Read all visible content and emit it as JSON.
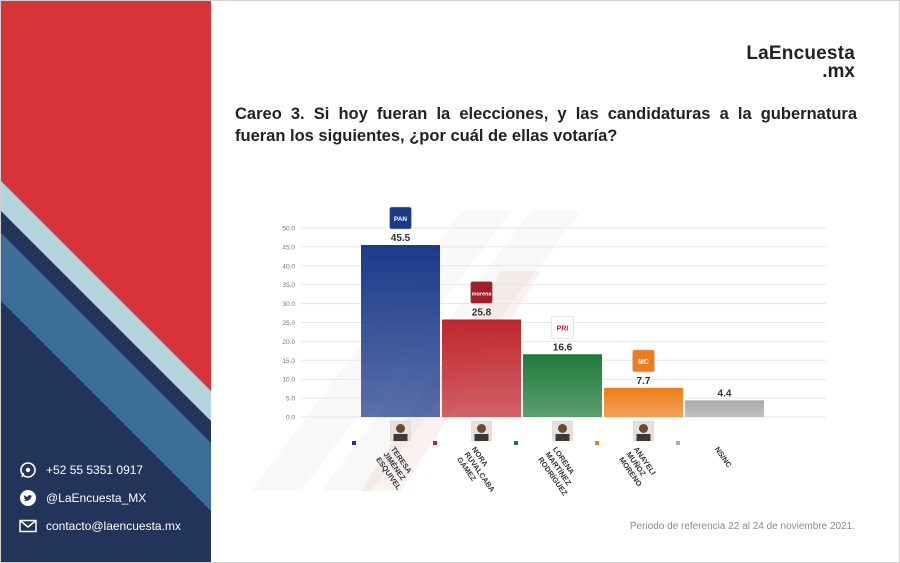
{
  "brand": {
    "line1": "LaEncuesta",
    "line2": ".mx"
  },
  "title": "Careo 3. Si hoy fueran la elecciones, y las candidaturas a la gubernatura fueran los siguientes, ¿por cuál de ellas votaría?",
  "contacts": [
    {
      "icon": "whatsapp-icon",
      "text": "+52 55 5351 0917"
    },
    {
      "icon": "twitter-icon",
      "text": "@LaEncuesta_MX"
    },
    {
      "icon": "mail-icon",
      "text": "contacto@laencuesta.mx"
    }
  ],
  "footer_note": "Periodo de referencia 22 al 24 de noviembre 2021.",
  "colors": {
    "sidebar_red": "#d8333a",
    "sidebar_navy": "#22345a",
    "sidebar_blue": "#3b6e99",
    "sidebar_light": "#b5d3dd"
  },
  "chart_data": {
    "type": "bar",
    "title": "",
    "xlabel": "",
    "ylabel": "",
    "ylim": [
      0,
      50
    ],
    "yticks": [
      "0.0",
      "5.0",
      "10.0",
      "15.0",
      "20.0",
      "25.0",
      "30.0",
      "35.0",
      "40.0",
      "45.0",
      "50.0"
    ],
    "grid": true,
    "categories": [
      "TERESA JIMÉNEZ ESQUIVEL",
      "NORA RUVALCABA GÁMEZ",
      "LORENA MARTÍNEZ RODRÍGUEZ",
      "ANAYELI MUÑOZ MORENO",
      "NS/NC"
    ],
    "category_lines": [
      [
        "TERESA",
        "JIMÉNEZ",
        "ESQUIVEL"
      ],
      [
        "NORA",
        "RUVALCABA",
        "GÁMEZ"
      ],
      [
        "LORENA",
        "MARTÍNEZ",
        "RODRÍGUEZ"
      ],
      [
        "ANAYELI",
        "MUÑOZ",
        "MORENO"
      ],
      [
        "NS/NC"
      ]
    ],
    "values": [
      45.5,
      25.8,
      16.6,
      7.7,
      4.4
    ],
    "value_labels": [
      "45.5",
      "25.8",
      "16.6",
      "7.7",
      "4.4"
    ],
    "party_logos": [
      "PAN",
      "morena",
      "PRI",
      "MC",
      ""
    ],
    "colors": [
      "#1b3a8a",
      "#c0272d",
      "#1f7a3a",
      "#ef7c1a",
      "#a9a9a9"
    ]
  }
}
